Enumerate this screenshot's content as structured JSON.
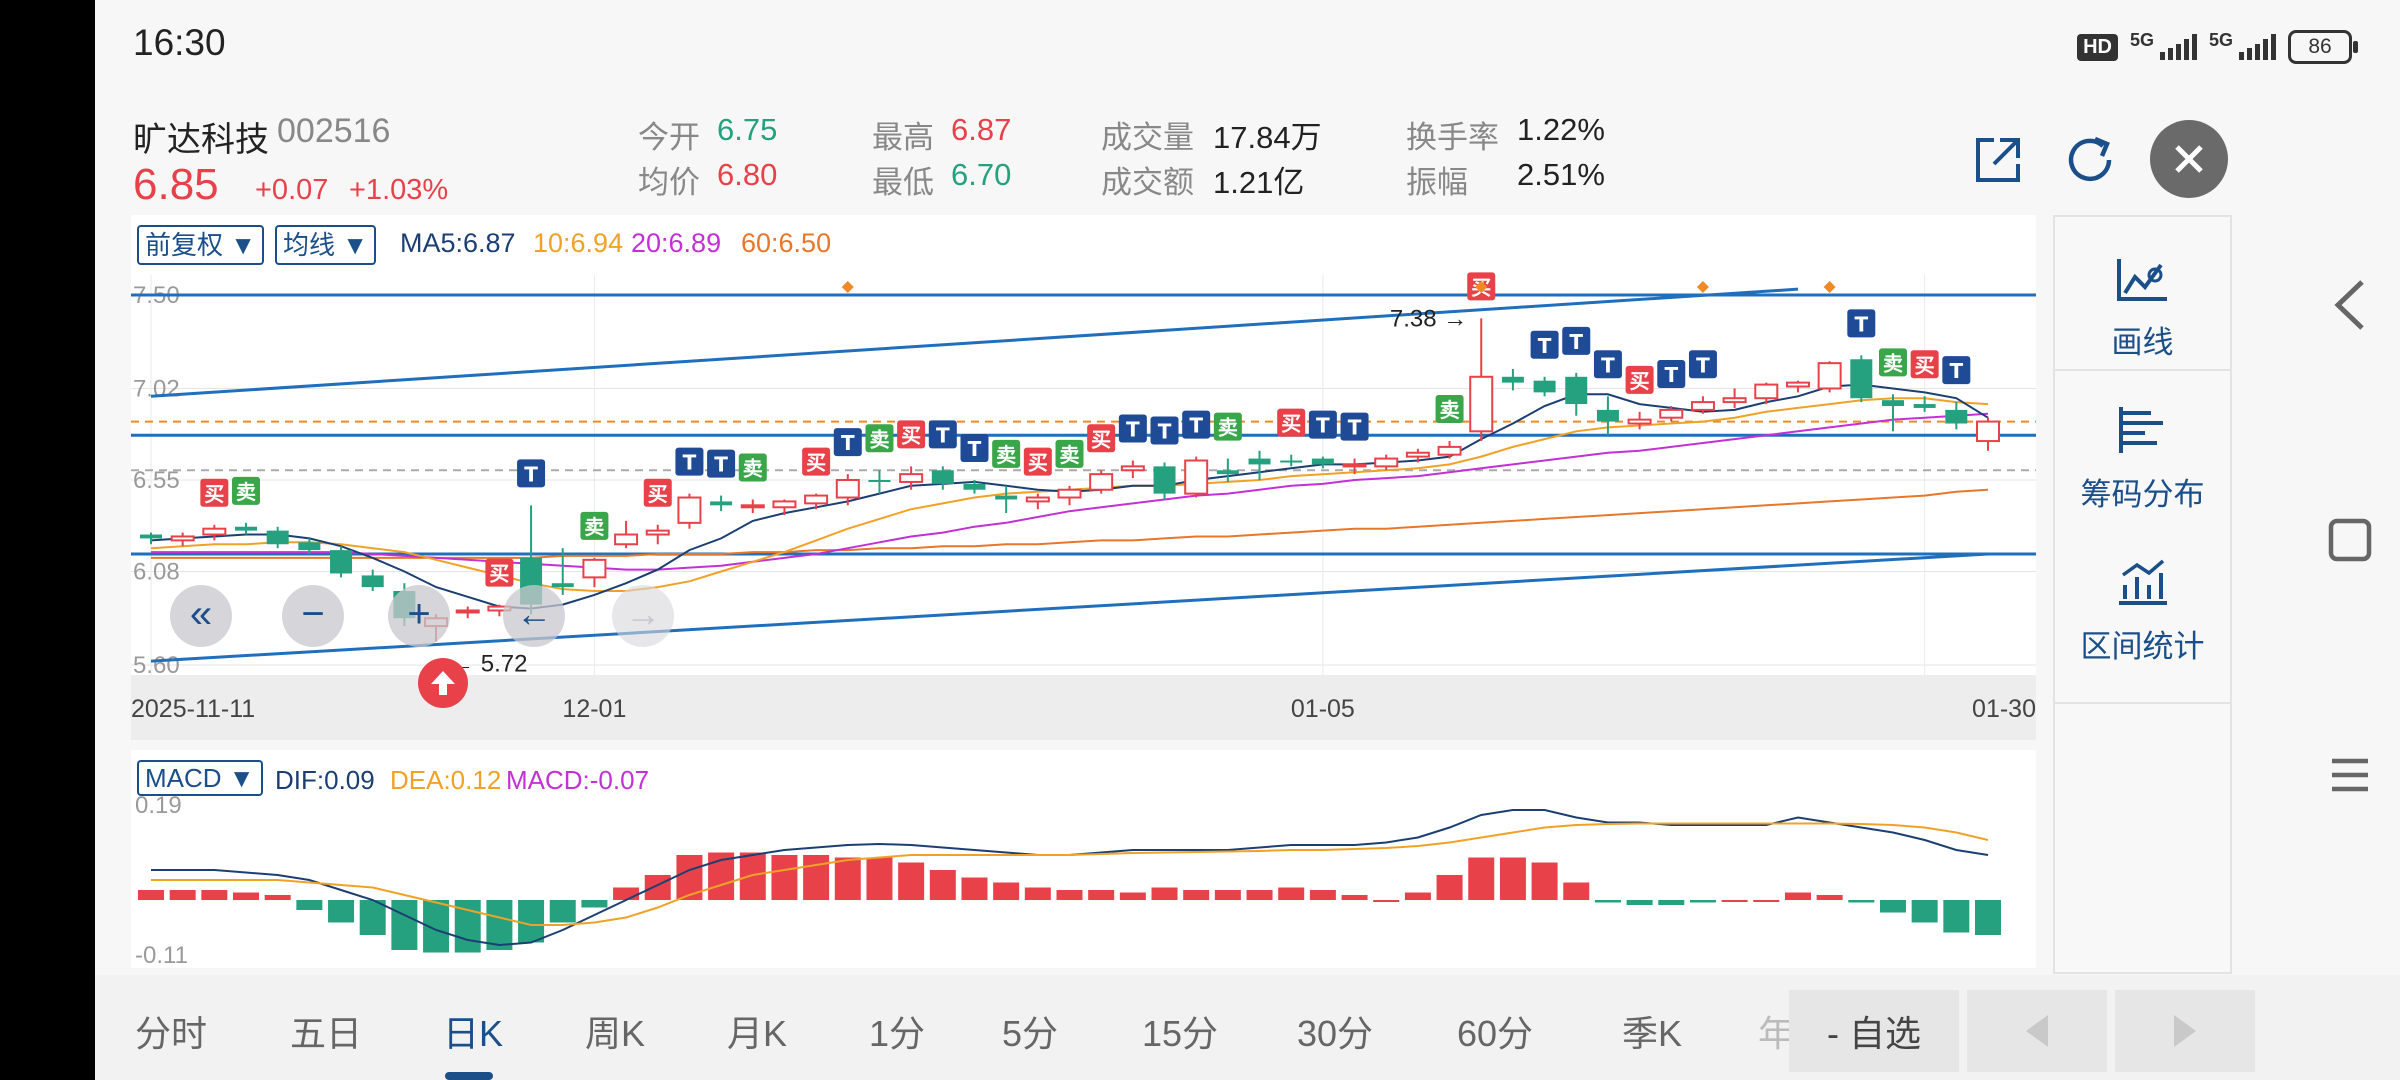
{
  "status_bar": {
    "time": "16:30",
    "hd": "HD",
    "net1": "5G",
    "net2": "5G",
    "battery": "86"
  },
  "stock": {
    "name": "旷达科技",
    "code": "002516",
    "price": "6.85",
    "change": "+0.07",
    "change_pct": "+1.03%"
  },
  "quote": {
    "open_label": "今开",
    "open": "6.75",
    "avg_label": "均价",
    "avg": "6.80",
    "high_label": "最高",
    "high": "6.87",
    "low_label": "最低",
    "low": "6.70",
    "volume_label": "成交量",
    "volume": "17.84万",
    "amount_label": "成交额",
    "amount": "1.21亿",
    "turnover_label": "换手率",
    "turnover": "1.22%",
    "amplitude_label": "振幅",
    "amplitude": "2.51%"
  },
  "chart_toolbar": {
    "adjust": "前复权 ▼",
    "ma_select": "均线 ▼",
    "ma5": "MA5:6.87",
    "ma10": "10:6.94",
    "ma20": "20:6.89",
    "ma60": "60:6.50"
  },
  "colors": {
    "up": "#e8414a",
    "down": "#26a17f",
    "ma5": "#1b3f73",
    "ma10": "#f0a227",
    "ma20": "#c230d6",
    "ma60": "#e8772a",
    "trendline": "#1f6fbd",
    "accent": "#1b4f8a"
  },
  "chart_data": [
    {
      "type": "candlestick",
      "title": "",
      "x_tick_labels": [
        "2025-11-11",
        "12-01",
        "01-05",
        "01-30"
      ],
      "x_tick_index": [
        0,
        14,
        37,
        56
      ],
      "y_tick_labels": [
        "7.50",
        "7.02",
        "6.55",
        "6.08",
        "5.60"
      ],
      "ylim": [
        5.6,
        7.5
      ],
      "max_annotation": "7.38",
      "min_annotation": "5.72",
      "ohlc": [
        [
          6.27,
          6.28,
          6.22,
          6.25
        ],
        [
          6.24,
          6.28,
          6.21,
          6.26
        ],
        [
          6.27,
          6.32,
          6.24,
          6.3
        ],
        [
          6.31,
          6.33,
          6.27,
          6.29
        ],
        [
          6.29,
          6.31,
          6.2,
          6.22
        ],
        [
          6.23,
          6.25,
          6.17,
          6.19
        ],
        [
          6.19,
          6.21,
          6.05,
          6.07
        ],
        [
          6.06,
          6.09,
          5.98,
          6.0
        ],
        [
          5.98,
          6.02,
          5.8,
          5.84
        ],
        [
          5.8,
          5.86,
          5.72,
          5.84
        ],
        [
          5.87,
          5.9,
          5.84,
          5.88
        ],
        [
          5.88,
          5.91,
          5.85,
          5.9
        ],
        [
          6.15,
          6.42,
          5.86,
          5.91
        ],
        [
          6.02,
          6.2,
          5.96,
          6.0
        ],
        [
          6.05,
          6.15,
          6.0,
          6.14
        ],
        [
          6.22,
          6.34,
          6.2,
          6.27
        ],
        [
          6.27,
          6.32,
          6.22,
          6.29
        ],
        [
          6.33,
          6.48,
          6.3,
          6.46
        ],
        [
          6.44,
          6.47,
          6.39,
          6.42
        ],
        [
          6.42,
          6.45,
          6.38,
          6.42
        ],
        [
          6.41,
          6.45,
          6.37,
          6.44
        ],
        [
          6.43,
          6.48,
          6.4,
          6.47
        ],
        [
          6.46,
          6.58,
          6.42,
          6.55
        ],
        [
          6.55,
          6.6,
          6.48,
          6.54
        ],
        [
          6.54,
          6.62,
          6.5,
          6.58
        ],
        [
          6.6,
          6.62,
          6.5,
          6.53
        ],
        [
          6.53,
          6.55,
          6.48,
          6.5
        ],
        [
          6.47,
          6.52,
          6.38,
          6.45
        ],
        [
          6.44,
          6.48,
          6.4,
          6.46
        ],
        [
          6.46,
          6.52,
          6.42,
          6.5
        ],
        [
          6.5,
          6.6,
          6.48,
          6.58
        ],
        [
          6.6,
          6.65,
          6.56,
          6.62
        ],
        [
          6.62,
          6.64,
          6.45,
          6.48
        ],
        [
          6.48,
          6.67,
          6.46,
          6.65
        ],
        [
          6.6,
          6.66,
          6.54,
          6.58
        ],
        [
          6.66,
          6.7,
          6.55,
          6.63
        ],
        [
          6.65,
          6.68,
          6.62,
          6.64
        ],
        [
          6.66,
          6.67,
          6.61,
          6.63
        ],
        [
          6.62,
          6.66,
          6.58,
          6.63
        ],
        [
          6.62,
          6.68,
          6.6,
          6.66
        ],
        [
          6.67,
          6.71,
          6.64,
          6.69
        ],
        [
          6.68,
          6.75,
          6.66,
          6.72
        ],
        [
          6.8,
          7.38,
          6.75,
          7.08
        ],
        [
          7.08,
          7.12,
          7.01,
          7.05
        ],
        [
          7.06,
          7.08,
          6.98,
          7.0
        ],
        [
          7.08,
          7.1,
          6.88,
          6.94
        ],
        [
          6.91,
          6.98,
          6.78,
          6.85
        ],
        [
          6.84,
          6.9,
          6.81,
          6.86
        ],
        [
          6.87,
          6.93,
          6.85,
          6.91
        ],
        [
          6.91,
          6.98,
          6.89,
          6.95
        ],
        [
          6.95,
          7.02,
          6.92,
          6.97
        ],
        [
          6.97,
          7.05,
          6.94,
          7.04
        ],
        [
          7.03,
          7.06,
          7.0,
          7.05
        ],
        [
          7.02,
          7.16,
          7.0,
          7.15
        ],
        [
          7.17,
          7.19,
          6.95,
          6.97
        ],
        [
          6.96,
          6.99,
          6.8,
          6.93
        ],
        [
          6.94,
          6.98,
          6.9,
          6.92
        ],
        [
          6.91,
          6.95,
          6.81,
          6.84
        ],
        [
          6.75,
          6.87,
          6.7,
          6.85
        ]
      ],
      "ma5": [
        6.24,
        6.25,
        6.26,
        6.27,
        6.27,
        6.25,
        6.21,
        6.15,
        6.08,
        6.0,
        5.95,
        5.9,
        5.89,
        5.91,
        5.96,
        6.02,
        6.09,
        6.19,
        6.25,
        6.34,
        6.38,
        6.41,
        6.44,
        6.48,
        6.52,
        6.53,
        6.54,
        6.52,
        6.5,
        6.49,
        6.5,
        6.52,
        6.52,
        6.55,
        6.57,
        6.59,
        6.61,
        6.63,
        6.63,
        6.64,
        6.65,
        6.67,
        6.76,
        6.84,
        6.93,
        6.99,
        6.99,
        6.94,
        6.92,
        6.9,
        6.91,
        6.95,
        6.98,
        7.03,
        7.04,
        7.02,
        7.0,
        6.97,
        6.87
      ],
      "ma10": [
        6.2,
        6.21,
        6.22,
        6.22,
        6.23,
        6.23,
        6.22,
        6.2,
        6.18,
        6.14,
        6.1,
        6.06,
        6.02,
        5.99,
        5.98,
        5.98,
        6.0,
        6.03,
        6.08,
        6.13,
        6.18,
        6.24,
        6.3,
        6.35,
        6.4,
        6.43,
        6.46,
        6.48,
        6.49,
        6.5,
        6.51,
        6.52,
        6.52,
        6.53,
        6.54,
        6.55,
        6.57,
        6.58,
        6.59,
        6.6,
        6.61,
        6.63,
        6.67,
        6.72,
        6.76,
        6.8,
        6.82,
        6.83,
        6.84,
        6.85,
        6.87,
        6.9,
        6.92,
        6.94,
        6.96,
        6.97,
        6.97,
        6.95,
        6.94
      ],
      "ma20": [
        6.18,
        6.18,
        6.18,
        6.18,
        6.18,
        6.18,
        6.18,
        6.17,
        6.16,
        6.15,
        6.14,
        6.13,
        6.12,
        6.11,
        6.1,
        6.09,
        6.09,
        6.1,
        6.11,
        6.13,
        6.15,
        6.17,
        6.2,
        6.23,
        6.26,
        6.28,
        6.31,
        6.33,
        6.36,
        6.39,
        6.41,
        6.43,
        6.45,
        6.47,
        6.48,
        6.5,
        6.52,
        6.53,
        6.55,
        6.56,
        6.57,
        6.59,
        6.61,
        6.63,
        6.65,
        6.67,
        6.69,
        6.7,
        6.72,
        6.74,
        6.76,
        6.78,
        6.8,
        6.82,
        6.84,
        6.86,
        6.87,
        6.88,
        6.89
      ],
      "ma60": [
        6.15,
        6.15,
        6.15,
        6.15,
        6.15,
        6.15,
        6.15,
        6.15,
        6.15,
        6.15,
        6.15,
        6.15,
        6.15,
        6.16,
        6.16,
        6.16,
        6.17,
        6.17,
        6.17,
        6.18,
        6.18,
        6.19,
        6.19,
        6.2,
        6.2,
        6.21,
        6.21,
        6.22,
        6.22,
        6.23,
        6.24,
        6.24,
        6.25,
        6.26,
        6.26,
        6.27,
        6.28,
        6.29,
        6.3,
        6.3,
        6.31,
        6.32,
        6.33,
        6.34,
        6.35,
        6.36,
        6.37,
        6.38,
        6.39,
        6.4,
        6.41,
        6.42,
        6.43,
        6.44,
        6.45,
        6.46,
        6.47,
        6.49,
        6.5
      ],
      "trendlines": [
        {
          "from": [
            0,
            6.98
          ],
          "to": [
            52,
            7.53
          ]
        },
        {
          "from": [
            0,
            5.62
          ],
          "to": [
            58,
            6.17
          ]
        }
      ],
      "horizontal_lines": [
        7.5,
        6.78,
        6.17
      ],
      "markers": [
        {
          "i": 2,
          "text": "买",
          "side": "buy"
        },
        {
          "i": 3,
          "text": "卖",
          "side": "sell"
        },
        {
          "i": 11,
          "text": "买",
          "side": "buy"
        },
        {
          "i": 12,
          "text": "T",
          "side": "t"
        },
        {
          "i": 14,
          "text": "卖",
          "side": "sell"
        },
        {
          "i": 16,
          "text": "买",
          "side": "buy"
        },
        {
          "i": 17,
          "text": "T",
          "side": "t"
        },
        {
          "i": 18,
          "text": "T",
          "side": "t"
        },
        {
          "i": 19,
          "text": "卖",
          "side": "sell"
        },
        {
          "i": 21,
          "text": "买",
          "side": "buy"
        },
        {
          "i": 22,
          "text": "T",
          "side": "t"
        },
        {
          "i": 23,
          "text": "卖",
          "side": "sell"
        },
        {
          "i": 24,
          "text": "买",
          "side": "buy"
        },
        {
          "i": 25,
          "text": "T",
          "side": "t"
        },
        {
          "i": 26,
          "text": "T",
          "side": "t"
        },
        {
          "i": 27,
          "text": "卖",
          "side": "sell"
        },
        {
          "i": 28,
          "text": "买",
          "side": "buy"
        },
        {
          "i": 29,
          "text": "卖",
          "side": "sell"
        },
        {
          "i": 30,
          "text": "买",
          "side": "buy"
        },
        {
          "i": 31,
          "text": "T",
          "side": "t"
        },
        {
          "i": 32,
          "text": "T",
          "side": "t"
        },
        {
          "i": 33,
          "text": "T",
          "side": "t"
        },
        {
          "i": 34,
          "text": "卖",
          "side": "sell"
        },
        {
          "i": 36,
          "text": "买",
          "side": "buy"
        },
        {
          "i": 37,
          "text": "T",
          "side": "t"
        },
        {
          "i": 38,
          "text": "T",
          "side": "t"
        },
        {
          "i": 41,
          "text": "卖",
          "side": "sell"
        },
        {
          "i": 42,
          "text": "买",
          "side": "buy"
        },
        {
          "i": 44,
          "text": "T",
          "side": "t"
        },
        {
          "i": 45,
          "text": "T",
          "side": "t"
        },
        {
          "i": 46,
          "text": "T",
          "side": "t"
        },
        {
          "i": 47,
          "text": "买",
          "side": "buy"
        },
        {
          "i": 48,
          "text": "T",
          "side": "t"
        },
        {
          "i": 49,
          "text": "T",
          "side": "t"
        },
        {
          "i": 54,
          "text": "T",
          "side": "t"
        },
        {
          "i": 55,
          "text": "卖",
          "side": "sell"
        },
        {
          "i": 56,
          "text": "买",
          "side": "buy"
        },
        {
          "i": 57,
          "text": "T",
          "side": "t"
        }
      ]
    },
    {
      "type": "bar",
      "title": "",
      "indicator_select": "MACD ▼",
      "dif_label": "DIF:0.09",
      "dea_label": "DEA:0.12",
      "macd_label": "MACD:-0.07",
      "y_tick_labels": [
        "0.19",
        "-0.11"
      ],
      "ylim": [
        -0.11,
        0.19
      ],
      "hist": [
        0.02,
        0.02,
        0.02,
        0.015,
        0.01,
        -0.02,
        -0.045,
        -0.07,
        -0.1,
        -0.105,
        -0.105,
        -0.1,
        -0.085,
        -0.045,
        -0.015,
        0.025,
        0.05,
        0.09,
        0.095,
        0.095,
        0.09,
        0.09,
        0.085,
        0.085,
        0.075,
        0.06,
        0.045,
        0.035,
        0.025,
        0.02,
        0.02,
        0.015,
        0.025,
        0.02,
        0.02,
        0.02,
        0.025,
        0.02,
        0.01,
        0.0,
        0.015,
        0.05,
        0.085,
        0.085,
        0.075,
        0.035,
        -0.005,
        -0.01,
        -0.01,
        -0.005,
        0.0,
        0.0,
        0.015,
        0.01,
        -0.005,
        -0.025,
        -0.045,
        -0.065,
        -0.07
      ],
      "dif": [
        0.06,
        0.06,
        0.06,
        0.055,
        0.05,
        0.04,
        0.02,
        0.0,
        -0.03,
        -0.06,
        -0.08,
        -0.09,
        -0.085,
        -0.06,
        -0.03,
        0.0,
        0.03,
        0.06,
        0.08,
        0.09,
        0.1,
        0.105,
        0.11,
        0.112,
        0.11,
        0.105,
        0.1,
        0.095,
        0.09,
        0.09,
        0.095,
        0.1,
        0.1,
        0.1,
        0.1,
        0.105,
        0.11,
        0.11,
        0.11,
        0.115,
        0.125,
        0.145,
        0.17,
        0.18,
        0.18,
        0.165,
        0.155,
        0.155,
        0.15,
        0.15,
        0.15,
        0.15,
        0.165,
        0.155,
        0.145,
        0.135,
        0.12,
        0.1,
        0.09
      ],
      "dea": [
        0.04,
        0.04,
        0.04,
        0.04,
        0.04,
        0.035,
        0.03,
        0.025,
        0.01,
        -0.005,
        -0.02,
        -0.035,
        -0.05,
        -0.05,
        -0.045,
        -0.035,
        -0.015,
        0.01,
        0.03,
        0.05,
        0.06,
        0.07,
        0.08,
        0.085,
        0.09,
        0.09,
        0.09,
        0.09,
        0.09,
        0.09,
        0.092,
        0.094,
        0.095,
        0.096,
        0.097,
        0.098,
        0.1,
        0.1,
        0.102,
        0.104,
        0.108,
        0.115,
        0.125,
        0.135,
        0.145,
        0.15,
        0.152,
        0.153,
        0.153,
        0.153,
        0.153,
        0.153,
        0.153,
        0.153,
        0.152,
        0.15,
        0.145,
        0.135,
        0.12
      ]
    }
  ],
  "chart_controls": {
    "prev_fast": "«",
    "zoom_out": "−",
    "zoom_in": "+",
    "prev": "←",
    "next": "→"
  },
  "tools": [
    {
      "label": "画线",
      "icon": "draw-line-icon"
    },
    {
      "label": "筹码分布",
      "icon": "chip-distribution-icon"
    },
    {
      "label": "区间统计",
      "icon": "range-stats-icon"
    }
  ],
  "tabs": [
    "分时",
    "五日",
    "日K",
    "周K",
    "月K",
    "1分",
    "5分",
    "15分",
    "30分",
    "60分",
    "季K",
    "年"
  ],
  "active_tab": "日K",
  "watchlist": "- 自选"
}
